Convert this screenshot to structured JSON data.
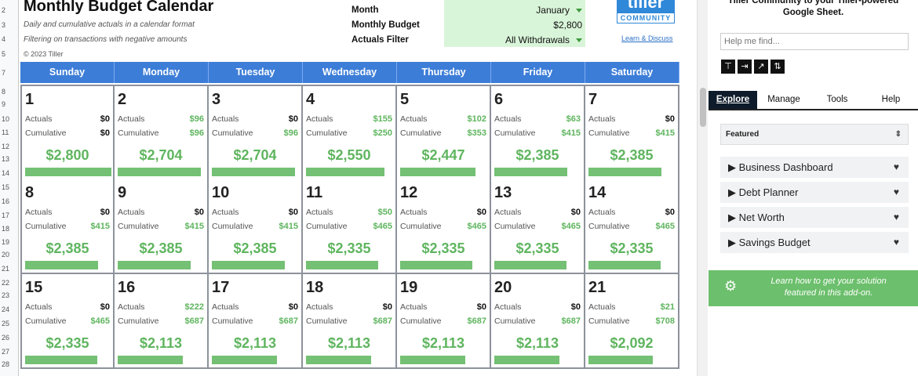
{
  "sheet": {
    "row_numbers": [
      "2",
      "3",
      "4",
      "5",
      "7",
      "8",
      "9",
      "10",
      "11",
      "12",
      "13",
      "14",
      "15",
      "16",
      "17",
      "18",
      "19",
      "20",
      "21",
      "22",
      "23",
      "24",
      "25",
      "26",
      "27",
      "28"
    ],
    "title": "Monthly Budget Calendar",
    "subtitle_1": "Daily and cumulative actuals in a calendar format",
    "subtitle_2": "Filtering on transactions with negative amounts",
    "copyright": "© 2023 Tiller",
    "controls": {
      "month_label": "Month",
      "month_value": "January",
      "budget_label": "Monthly Budget",
      "budget_value": "$2,800",
      "filter_label": "Actuals Filter",
      "filter_value": "All Withdrawals"
    },
    "logo_top": "tiller",
    "logo_bottom": "COMMUNITY",
    "learn_link": "Learn & Discuss",
    "day_headers": [
      "Sunday",
      "Monday",
      "Tuesday",
      "Wednesday",
      "Thursday",
      "Friday",
      "Saturday"
    ],
    "actuals_label": "Actuals",
    "cumulative_label": "Cumulative",
    "weeks": [
      [
        {
          "day": "1",
          "actual": "$0",
          "cum": "$0",
          "bal": "$2,800",
          "bar": 0.98
        },
        {
          "day": "2",
          "actual": "$96",
          "cum": "$96",
          "bal": "$2,704",
          "bar": 0.95
        },
        {
          "day": "3",
          "actual": "$0",
          "cum": "$96",
          "bal": "$2,704",
          "bar": 0.95
        },
        {
          "day": "4",
          "actual": "$155",
          "cum": "$250",
          "bal": "$2,550",
          "bar": 0.89
        },
        {
          "day": "5",
          "actual": "$102",
          "cum": "$353",
          "bal": "$2,447",
          "bar": 0.86
        },
        {
          "day": "6",
          "actual": "$63",
          "cum": "$415",
          "bal": "$2,385",
          "bar": 0.83
        },
        {
          "day": "7",
          "actual": "$0",
          "cum": "$415",
          "bal": "$2,385",
          "bar": 0.83
        }
      ],
      [
        {
          "day": "8",
          "actual": "$0",
          "cum": "$415",
          "bal": "$2,385",
          "bar": 0.83
        },
        {
          "day": "9",
          "actual": "$0",
          "cum": "$415",
          "bal": "$2,385",
          "bar": 0.83
        },
        {
          "day": "10",
          "actual": "$0",
          "cum": "$415",
          "bal": "$2,385",
          "bar": 0.83
        },
        {
          "day": "11",
          "actual": "$50",
          "cum": "$465",
          "bal": "$2,335",
          "bar": 0.82
        },
        {
          "day": "12",
          "actual": "$0",
          "cum": "$465",
          "bal": "$2,335",
          "bar": 0.82
        },
        {
          "day": "13",
          "actual": "$0",
          "cum": "$465",
          "bal": "$2,335",
          "bar": 0.82
        },
        {
          "day": "14",
          "actual": "$0",
          "cum": "$465",
          "bal": "$2,335",
          "bar": 0.82
        }
      ],
      [
        {
          "day": "15",
          "actual": "$0",
          "cum": "$465",
          "bal": "$2,335",
          "bar": 0.82
        },
        {
          "day": "16",
          "actual": "$222",
          "cum": "$687",
          "bal": "$2,113",
          "bar": 0.74
        },
        {
          "day": "17",
          "actual": "$0",
          "cum": "$687",
          "bal": "$2,113",
          "bar": 0.74
        },
        {
          "day": "18",
          "actual": "$0",
          "cum": "$687",
          "bal": "$2,113",
          "bar": 0.74
        },
        {
          "day": "19",
          "actual": "$0",
          "cum": "$687",
          "bal": "$2,113",
          "bar": 0.74
        },
        {
          "day": "20",
          "actual": "$0",
          "cum": "$687",
          "bal": "$2,113",
          "bar": 0.74
        },
        {
          "day": "21",
          "actual": "$21",
          "cum": "$708",
          "bal": "$2,092",
          "bar": 0.73
        }
      ]
    ]
  },
  "sidebar": {
    "intro_line_1": "Tiller Community to your Tiller-powered",
    "intro_line_2": "Google Sheet.",
    "search_placeholder": "Help me find...",
    "tool_icons": [
      "paint-roller-icon",
      "merge-arrow-icon",
      "chart-up-icon",
      "sort-icon"
    ],
    "tabs": [
      "Explore",
      "Manage",
      "Tools",
      "Help"
    ],
    "active_tab": "Explore",
    "featured_label": "Featured",
    "items": [
      {
        "label": "Business Dashboard"
      },
      {
        "label": "Debt Planner"
      },
      {
        "label": "Net Worth"
      },
      {
        "label": "Savings Budget"
      }
    ],
    "promo_line_1": "Learn how to get your solution",
    "promo_line_2": "featured in this add-on."
  },
  "colors": {
    "header_blue": "#3c7dd8",
    "positive_green": "#5fb55f",
    "bar_green": "#74c074",
    "control_bg": "#d9f5d9",
    "promo_green": "#6cbf6c"
  }
}
